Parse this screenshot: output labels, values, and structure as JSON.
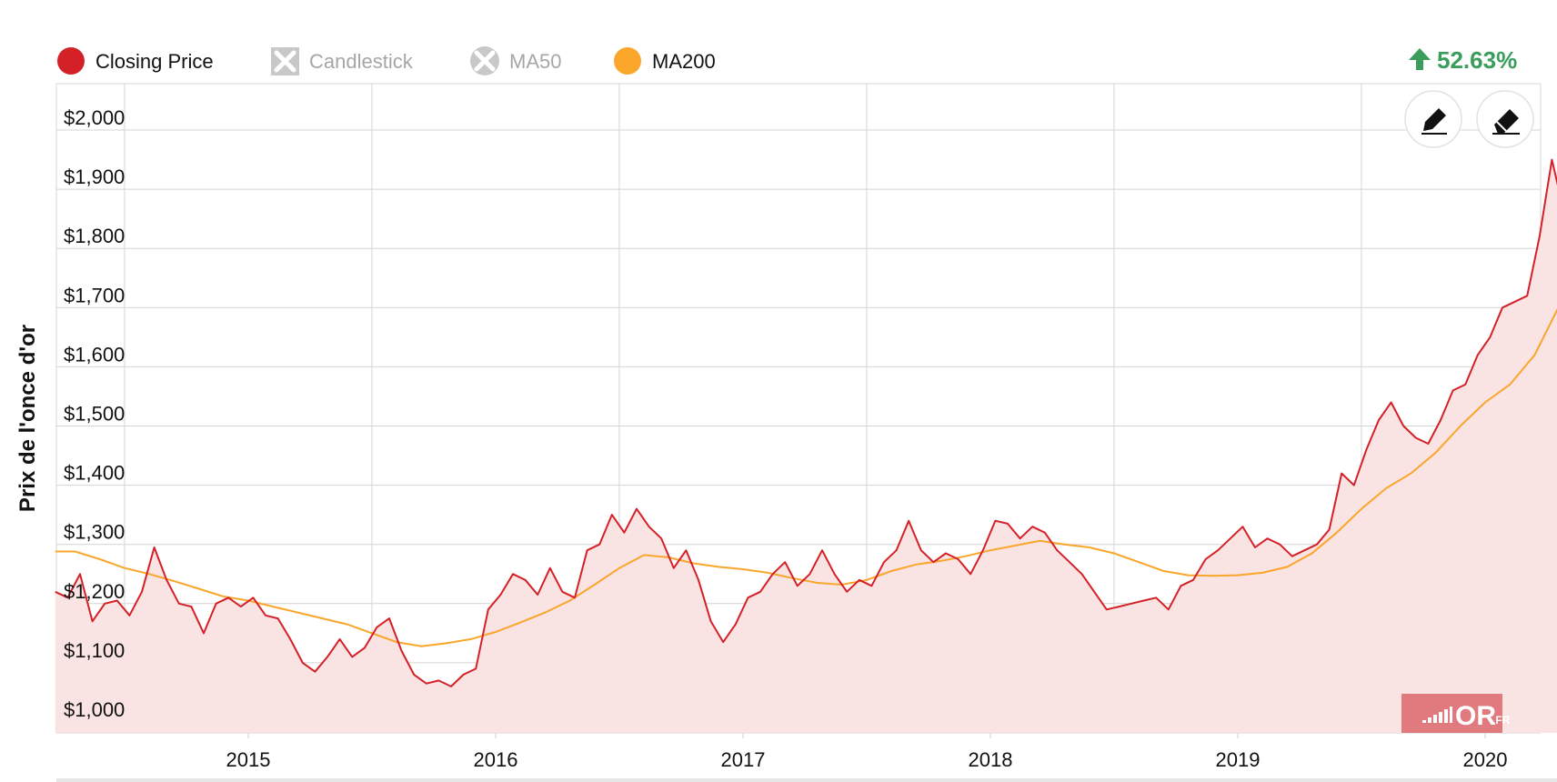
{
  "chart_data": {
    "type": "line",
    "ylabel": "Prix de l'once d'or",
    "ylim": [
      1000,
      2000
    ],
    "y_ticks": [
      "$1,000",
      "$1,100",
      "$1,200",
      "$1,300",
      "$1,400",
      "$1,500",
      "$1,600",
      "$1,700",
      "$1,800",
      "$1,900",
      "$2,000"
    ],
    "x_ticks": [
      "2015",
      "2016",
      "2017",
      "2018",
      "2019",
      "2020"
    ],
    "grid": true,
    "legend": {
      "placement": "top-left",
      "items": [
        {
          "name": "Closing Price",
          "color": "#d42027",
          "enabled": true
        },
        {
          "name": "Candlestick",
          "color": "#c8c8c8",
          "enabled": false
        },
        {
          "name": "MA50",
          "color": "#c8c8c8",
          "enabled": false
        },
        {
          "name": "MA200",
          "color": "#f9a62b",
          "enabled": true
        }
      ]
    },
    "change": {
      "direction": "up",
      "text": "52.63%",
      "color": "#3a9d5b"
    },
    "series": [
      {
        "name": "Closing Price",
        "color": "#d42027",
        "fill": "#fae3e3",
        "x": [
          2014.22,
          2014.27,
          2014.32,
          2014.37,
          2014.42,
          2014.47,
          2014.52,
          2014.57,
          2014.62,
          2014.67,
          2014.72,
          2014.77,
          2014.82,
          2014.87,
          2014.92,
          2014.97,
          2015.02,
          2015.07,
          2015.12,
          2015.17,
          2015.22,
          2015.27,
          2015.32,
          2015.37,
          2015.42,
          2015.47,
          2015.52,
          2015.57,
          2015.62,
          2015.67,
          2015.72,
          2015.77,
          2015.82,
          2015.87,
          2015.92,
          2015.97,
          2016.02,
          2016.07,
          2016.12,
          2016.17,
          2016.22,
          2016.27,
          2016.32,
          2016.37,
          2016.42,
          2016.47,
          2016.52,
          2016.57,
          2016.62,
          2016.67,
          2016.72,
          2016.77,
          2016.82,
          2016.87,
          2016.92,
          2016.97,
          2017.02,
          2017.07,
          2017.12,
          2017.17,
          2017.22,
          2017.27,
          2017.32,
          2017.37,
          2017.42,
          2017.47,
          2017.52,
          2017.57,
          2017.62,
          2017.67,
          2017.72,
          2017.77,
          2017.82,
          2017.87,
          2017.92,
          2017.97,
          2018.02,
          2018.07,
          2018.12,
          2018.17,
          2018.22,
          2018.27,
          2018.32,
          2018.37,
          2018.42,
          2018.47,
          2018.52,
          2018.57,
          2018.62,
          2018.67,
          2018.72,
          2018.77,
          2018.82,
          2018.87,
          2018.92,
          2018.97,
          2019.02,
          2019.07,
          2019.12,
          2019.17,
          2019.22,
          2019.27,
          2019.32,
          2019.37,
          2019.42,
          2019.47,
          2019.52,
          2019.57,
          2019.62,
          2019.67,
          2019.72,
          2019.77,
          2019.82,
          2019.87,
          2019.92,
          2019.97,
          2020.02,
          2020.07,
          2020.12,
          2020.17,
          2020.22,
          2020.27,
          2020.32
        ],
        "values": [
          1220,
          1210,
          1250,
          1170,
          1200,
          1205,
          1180,
          1220,
          1295,
          1240,
          1200,
          1195,
          1150,
          1200,
          1210,
          1195,
          1210,
          1180,
          1175,
          1140,
          1100,
          1085,
          1110,
          1140,
          1110,
          1125,
          1160,
          1175,
          1120,
          1080,
          1065,
          1070,
          1060,
          1080,
          1090,
          1190,
          1215,
          1250,
          1240,
          1215,
          1260,
          1220,
          1210,
          1290,
          1300,
          1350,
          1320,
          1360,
          1330,
          1310,
          1260,
          1290,
          1240,
          1170,
          1135,
          1165,
          1210,
          1220,
          1250,
          1270,
          1230,
          1250,
          1290,
          1250,
          1220,
          1240,
          1230,
          1270,
          1290,
          1340,
          1290,
          1270,
          1285,
          1275,
          1250,
          1290,
          1340,
          1335,
          1310,
          1330,
          1320,
          1290,
          1270,
          1250,
          1220,
          1190,
          1195,
          1200,
          1205,
          1210,
          1190,
          1230,
          1240,
          1275,
          1290,
          1310,
          1330,
          1295,
          1310,
          1300,
          1280,
          1290,
          1300,
          1325,
          1420,
          1400,
          1460,
          1510,
          1540,
          1500,
          1480,
          1470,
          1510,
          1560,
          1570,
          1620,
          1650,
          1700,
          1710,
          1720,
          1820,
          1950,
          1860
        ]
      },
      {
        "name": "MA200",
        "color": "#f9a62b",
        "x": [
          2014.22,
          2014.3,
          2014.4,
          2014.5,
          2014.6,
          2014.7,
          2014.8,
          2014.9,
          2015.0,
          2015.1,
          2015.2,
          2015.3,
          2015.4,
          2015.5,
          2015.6,
          2015.7,
          2015.8,
          2015.9,
          2016.0,
          2016.1,
          2016.2,
          2016.3,
          2016.4,
          2016.5,
          2016.6,
          2016.7,
          2016.8,
          2016.9,
          2017.0,
          2017.1,
          2017.2,
          2017.3,
          2017.4,
          2017.5,
          2017.6,
          2017.7,
          2017.8,
          2017.9,
          2018.0,
          2018.1,
          2018.2,
          2018.3,
          2018.4,
          2018.5,
          2018.6,
          2018.7,
          2018.8,
          2018.9,
          2019.0,
          2019.1,
          2019.2,
          2019.3,
          2019.4,
          2019.5,
          2019.6,
          2019.7,
          2019.8,
          2019.9,
          2020.0,
          2020.1,
          2020.2,
          2020.32
        ],
        "values": [
          1288,
          1288,
          1275,
          1260,
          1250,
          1238,
          1225,
          1212,
          1205,
          1195,
          1185,
          1175,
          1165,
          1150,
          1135,
          1128,
          1133,
          1140,
          1152,
          1168,
          1185,
          1205,
          1232,
          1260,
          1282,
          1278,
          1268,
          1262,
          1258,
          1252,
          1243,
          1235,
          1232,
          1240,
          1255,
          1266,
          1272,
          1280,
          1290,
          1298,
          1306,
          1300,
          1295,
          1285,
          1270,
          1255,
          1248,
          1247,
          1248,
          1252,
          1262,
          1285,
          1320,
          1360,
          1395,
          1420,
          1455,
          1500,
          1540,
          1570,
          1620,
          1720
        ]
      }
    ]
  },
  "tools": [
    {
      "name": "pencil-icon",
      "label": "draw"
    },
    {
      "name": "eraser-icon",
      "label": "erase"
    }
  ],
  "watermark": {
    "text": "OR",
    "suffix": ".FR",
    "color": "#e07a7e"
  }
}
